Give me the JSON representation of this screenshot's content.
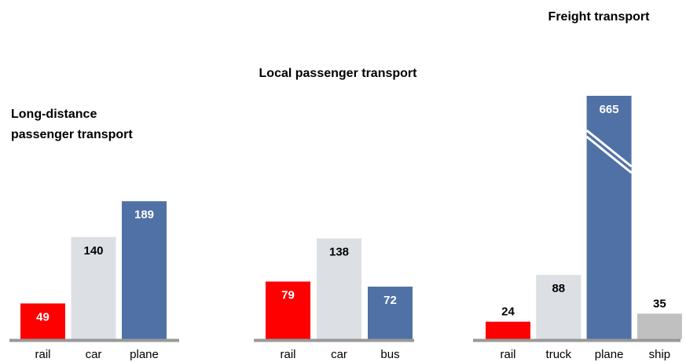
{
  "chart_data": [
    {
      "type": "bar",
      "title": [
        "Long-distance",
        "passenger transport"
      ],
      "categories": [
        "rail",
        "car",
        "plane"
      ],
      "values": [
        49,
        140,
        189
      ],
      "colors": [
        "#ff0000",
        "#dcdfe4",
        "#4f71a6"
      ]
    },
    {
      "type": "bar",
      "title": "Local passenger transport",
      "categories": [
        "rail",
        "car",
        "bus"
      ],
      "values": [
        79,
        138,
        72
      ],
      "colors": [
        "#ff0000",
        "#dcdfe4",
        "#4f71a6"
      ]
    },
    {
      "type": "bar",
      "title": "Freight transport",
      "categories": [
        "rail",
        "truck",
        "plane",
        "ship"
      ],
      "values": [
        24,
        88,
        665,
        35
      ],
      "colors": [
        "#ff0000",
        "#dcdfe4",
        "#4f71a6",
        "#c0c0c0"
      ],
      "axis_break": true
    }
  ]
}
